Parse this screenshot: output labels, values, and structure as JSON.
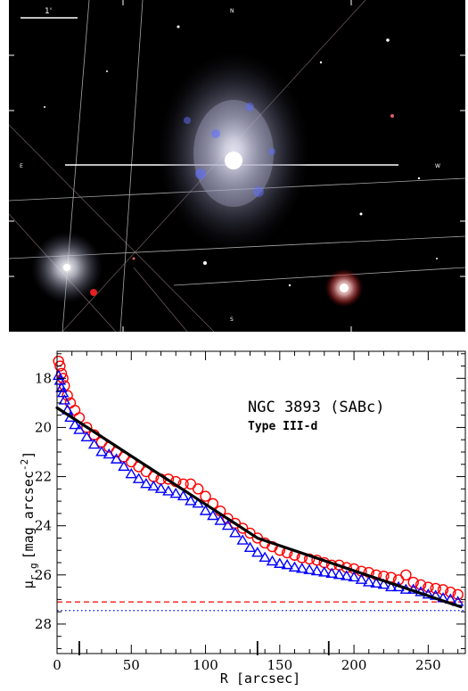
{
  "image_panel": {
    "scale_bar_label": "1'",
    "compass": {
      "north": "N",
      "south": "S",
      "east": "E",
      "west": "W"
    }
  },
  "chart_data": {
    "type": "scatter",
    "annotations": [
      "NGC 3893 (SABc)",
      "Type III-d"
    ],
    "xlabel": "R [arcsec]",
    "ylabel": "μr,g [mag arcsec⁻²]",
    "ylabel_parts": {
      "sym": "μ",
      "sub": "r,g",
      "units": "[mag arcsec",
      "exp": "-2",
      "close": "]"
    },
    "xlim": [
      0,
      275
    ],
    "ylim": [
      29.2,
      16.9
    ],
    "y_inverted": true,
    "xticks": [
      0,
      50,
      100,
      150,
      200,
      250
    ],
    "yticks": [
      18,
      20,
      22,
      24,
      26,
      28
    ],
    "break_markers_x": [
      15,
      135,
      183
    ],
    "series": [
      {
        "color": "#ff0000",
        "marker": "circle",
        "x": [
          1,
          2,
          3,
          4,
          5,
          7,
          9,
          12,
          15,
          20,
          25,
          30,
          35,
          40,
          45,
          50,
          55,
          60,
          65,
          70,
          75,
          80,
          85,
          90,
          95,
          100,
          105,
          110,
          115,
          120,
          125,
          130,
          135,
          140,
          145,
          150,
          155,
          160,
          165,
          170,
          175,
          180,
          185,
          190,
          195,
          200,
          205,
          210,
          215,
          220,
          225,
          230,
          235,
          240,
          245,
          250,
          255,
          260,
          265,
          270
        ],
        "y": [
          17.3,
          17.5,
          17.8,
          18.0,
          18.3,
          18.7,
          19.0,
          19.3,
          19.6,
          20.0,
          20.3,
          20.6,
          20.8,
          21.0,
          21.2,
          21.4,
          21.6,
          21.8,
          22.0,
          22.1,
          22.1,
          22.2,
          22.3,
          22.3,
          22.5,
          22.8,
          23.1,
          23.4,
          23.7,
          23.9,
          24.1,
          24.3,
          24.5,
          24.7,
          24.85,
          25.0,
          25.1,
          25.2,
          25.3,
          25.35,
          25.4,
          25.5,
          25.6,
          25.6,
          25.7,
          25.75,
          25.85,
          25.9,
          26.0,
          26.05,
          26.1,
          26.2,
          26.0,
          26.3,
          26.4,
          26.5,
          26.55,
          26.6,
          26.7,
          26.8
        ]
      },
      {
        "color": "#0000ff",
        "marker": "triangle",
        "x": [
          1,
          2,
          3,
          4,
          5,
          7,
          9,
          12,
          15,
          20,
          25,
          30,
          35,
          40,
          45,
          50,
          55,
          60,
          65,
          70,
          75,
          80,
          85,
          90,
          95,
          100,
          105,
          110,
          115,
          120,
          125,
          130,
          135,
          140,
          145,
          150,
          155,
          160,
          165,
          170,
          175,
          180,
          185,
          190,
          195,
          200,
          205,
          210,
          215,
          220,
          225,
          230,
          235,
          240,
          245,
          250,
          255,
          260,
          265,
          270
        ],
        "y": [
          17.9,
          18.1,
          18.4,
          18.6,
          18.9,
          19.3,
          19.6,
          19.9,
          20.1,
          20.4,
          20.7,
          21.0,
          21.1,
          21.3,
          21.6,
          21.9,
          22.1,
          22.3,
          22.4,
          22.5,
          22.6,
          22.7,
          22.8,
          23.0,
          23.1,
          23.4,
          23.6,
          23.8,
          24.0,
          24.3,
          24.6,
          24.9,
          25.1,
          25.3,
          25.45,
          25.55,
          25.6,
          25.7,
          25.75,
          25.8,
          25.85,
          25.9,
          25.95,
          26.0,
          26.05,
          26.1,
          26.2,
          26.3,
          26.35,
          26.4,
          26.5,
          26.5,
          26.6,
          26.6,
          26.7,
          26.8,
          26.85,
          26.95,
          27.0,
          27.1
        ]
      }
    ],
    "fits": [
      {
        "color": "#000000",
        "x": [
          0,
          135
        ],
        "y": [
          19.2,
          24.5
        ]
      },
      {
        "color": "#000000",
        "x": [
          135,
          272
        ],
        "y": [
          24.5,
          27.3
        ]
      }
    ],
    "sky_lines": [
      {
        "color": "#ff0000",
        "style": "dashed",
        "y": 27.1
      },
      {
        "color": "#0000ff",
        "style": "dotted",
        "y": 27.45
      }
    ]
  }
}
